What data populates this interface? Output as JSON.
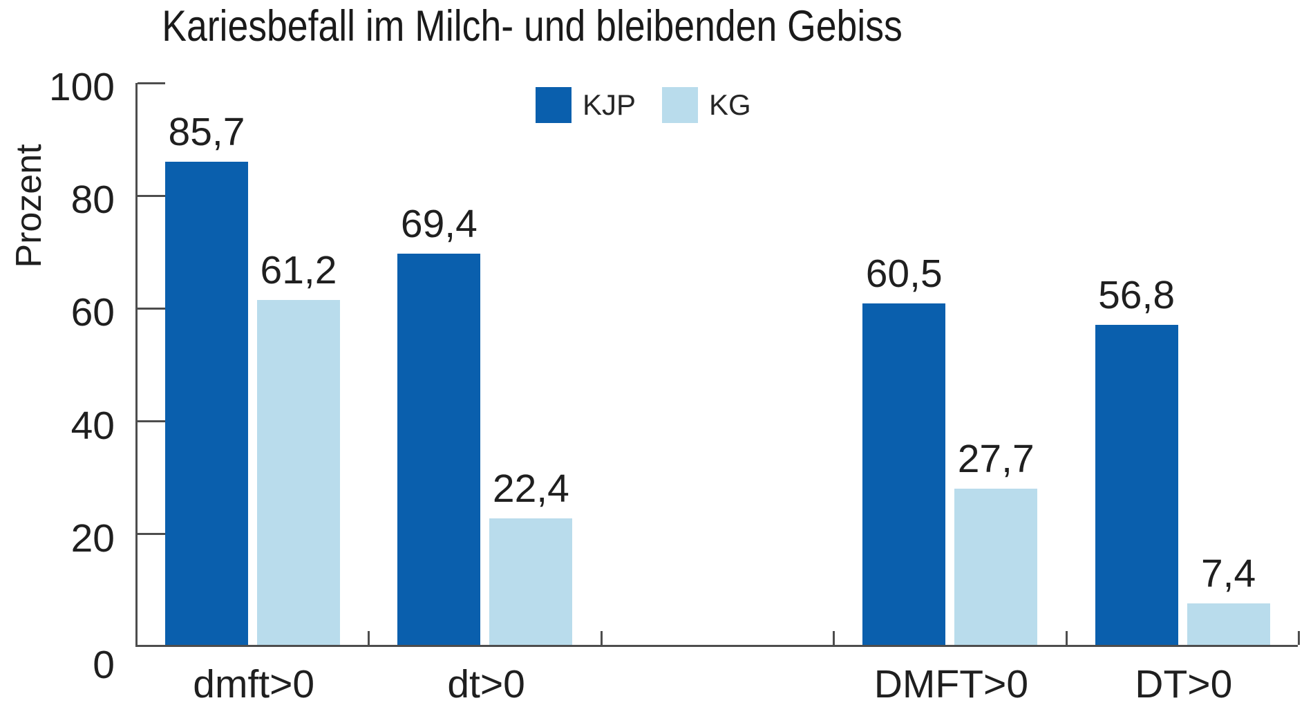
{
  "title": "Kariesbefall im Milch- und bleibenden Gebiss",
  "colors": {
    "kjp_bar": "#0A5FAD",
    "kg_bar": "#B9DCEC",
    "axis": "#4D4D4D",
    "text": "#1F1F1F",
    "background": "#FFFFFF"
  },
  "chart_data": {
    "type": "bar",
    "title": "Kariesbefall im Milch- und bleibenden Gebiss",
    "xlabel": "",
    "ylabel": "Prozent",
    "ylim": [
      0,
      100
    ],
    "y_ticks": [
      0,
      20,
      40,
      60,
      80,
      100
    ],
    "y_tick_labels": [
      "0",
      "20",
      "40",
      "60",
      "80",
      "100"
    ],
    "grid": false,
    "legend_position": "top-center",
    "categories": [
      "dmft>0",
      "dt>0",
      "DMFT>0",
      "DT>0"
    ],
    "category_note": "empty slot between dt>0 and DMFT>0 separates primary and permanent dentition groups",
    "series": [
      {
        "name": "KJP",
        "color": "#0A5FAD",
        "values": [
          85.7,
          69.4,
          60.5,
          56.8
        ],
        "value_labels": [
          "85,7",
          "69,4",
          "60,5",
          "56,8"
        ]
      },
      {
        "name": "KG",
        "color": "#B9DCEC",
        "values": [
          61.2,
          22.4,
          27.7,
          7.4
        ],
        "value_labels": [
          "61,2",
          "22,4",
          "27,7",
          "7,4"
        ]
      }
    ]
  }
}
